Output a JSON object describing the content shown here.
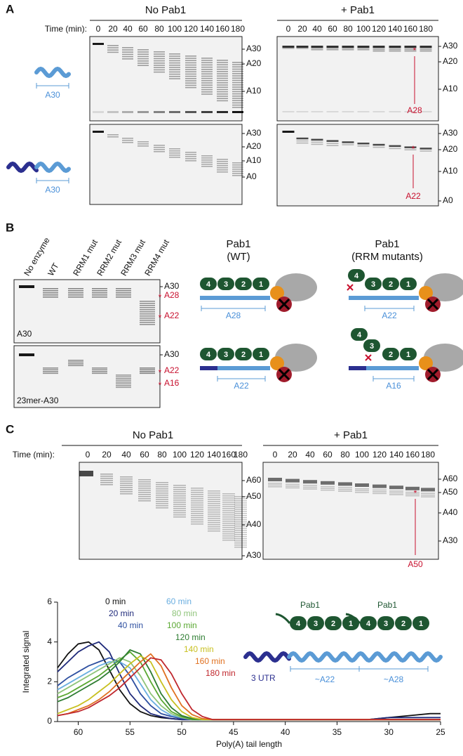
{
  "panel_a": {
    "letter": "A",
    "time_label": "Time (min):",
    "times": [
      "0",
      "20",
      "40",
      "60",
      "80",
      "100",
      "120",
      "140",
      "160",
      "180"
    ],
    "no_pab1": {
      "title": "No Pab1",
      "top_markers": [
        "A30",
        "A20",
        "A10"
      ],
      "bottom_markers": [
        "A30",
        "A20",
        "A10",
        "A0"
      ]
    },
    "plus_pab1": {
      "title": "+ Pab1",
      "top_markers": [
        "A30",
        "A20",
        "A10"
      ],
      "bottom_markers": [
        "A30",
        "A20",
        "A10",
        "A0"
      ],
      "star": "*",
      "top_annotation": "A28",
      "bottom_annotation": "A22"
    },
    "substrate_labels": [
      "A30",
      "A30"
    ]
  },
  "panel_b": {
    "letter": "B",
    "lanes": [
      "No enzyme",
      "WT",
      "RRM1 mut",
      "RRM2 mut",
      "RRM3 mut",
      "RRM4 mut"
    ],
    "top_gel": {
      "label": "A30",
      "markers": [
        "A30",
        "A28",
        "A22"
      ]
    },
    "bottom_gel": {
      "label": "23mer-A30",
      "markers": [
        "A30",
        "A22",
        "A16"
      ]
    },
    "star": "*",
    "wt_title": [
      "Pab1",
      "(WT)"
    ],
    "mut_title": [
      "Pab1",
      "(RRM mutants)"
    ],
    "domains": [
      "4",
      "3",
      "2",
      "1"
    ],
    "footprints": [
      "A28",
      "A22",
      "A22",
      "A16"
    ]
  },
  "panel_c": {
    "letter": "C",
    "time_label": "Time (min):",
    "times": [
      "0",
      "20",
      "40",
      "60",
      "80",
      "100",
      "120",
      "140",
      "160",
      "180"
    ],
    "no_pab1": {
      "title": "No Pab1",
      "markers": [
        "A60",
        "A50",
        "A40",
        "A30"
      ]
    },
    "plus_pab1": {
      "title": "+ Pab1",
      "markers": [
        "A60",
        "A50",
        "A40",
        "A30"
      ],
      "star": "*",
      "annotation": "A50"
    }
  },
  "chart_data": {
    "type": "line",
    "x_label": "Poly(A) tail length",
    "y_label": "Integrated signal",
    "x": [
      62,
      61,
      60,
      59,
      58,
      57,
      56,
      55,
      54,
      53,
      52,
      51,
      50,
      49,
      48,
      47,
      46,
      45,
      44,
      42,
      40,
      38,
      36,
      34,
      32,
      30,
      28,
      26,
      25
    ],
    "xlim": [
      62,
      25
    ],
    "xticks": [
      60,
      55,
      50,
      45,
      40,
      35,
      30,
      25
    ],
    "ylim": [
      0,
      6
    ],
    "yticks": [
      0,
      2,
      4,
      6
    ],
    "grid": false,
    "series": [
      {
        "name": "0 min",
        "color": "#111111",
        "values": [
          2.7,
          3.4,
          3.9,
          4.0,
          3.6,
          2.6,
          1.6,
          0.9,
          0.5,
          0.3,
          0.2,
          0.15,
          0.1,
          0.1,
          0.1,
          0.1,
          0.1,
          0.1,
          0.1,
          0.1,
          0.1,
          0.1,
          0.1,
          0.1,
          0.1,
          0.2,
          0.3,
          0.4,
          0.4
        ]
      },
      {
        "name": "20 min",
        "color": "#1f2a7a",
        "values": [
          2.5,
          3.0,
          3.5,
          3.8,
          4.0,
          3.5,
          2.4,
          1.4,
          0.8,
          0.4,
          0.25,
          0.15,
          0.1,
          0.1,
          0.1,
          0.1,
          0.1,
          0.1,
          0.1,
          0.1,
          0.1,
          0.1,
          0.1,
          0.1,
          0.1,
          0.2,
          0.2,
          0.2,
          0.2
        ]
      },
      {
        "name": "40 min",
        "color": "#2d4fa0",
        "values": [
          1.8,
          2.2,
          2.5,
          2.8,
          3.0,
          3.2,
          3.0,
          2.3,
          1.4,
          0.8,
          0.4,
          0.25,
          0.15,
          0.1,
          0.1,
          0.1,
          0.1,
          0.1,
          0.1,
          0.1,
          0.1,
          0.1,
          0.1,
          0.1,
          0.1,
          0.1,
          0.1,
          0.1,
          0.1
        ]
      },
      {
        "name": "60 min",
        "color": "#6aaee0",
        "values": [
          1.6,
          1.9,
          2.2,
          2.5,
          2.8,
          3.0,
          3.0,
          2.7,
          1.9,
          1.1,
          0.6,
          0.3,
          0.2,
          0.1,
          0.1,
          0.1,
          0.1,
          0.1,
          0.1,
          0.1,
          0.1,
          0.1,
          0.1,
          0.1,
          0.1,
          0.1,
          0.1,
          0.1,
          0.1
        ]
      },
      {
        "name": "80 min",
        "color": "#8fc47a",
        "values": [
          1.4,
          1.7,
          2.0,
          2.3,
          2.6,
          2.9,
          3.2,
          3.0,
          2.3,
          1.4,
          0.8,
          0.4,
          0.2,
          0.1,
          0.1,
          0.1,
          0.1,
          0.1,
          0.1,
          0.1,
          0.1,
          0.1,
          0.1,
          0.1,
          0.1,
          0.1,
          0.1,
          0.1,
          0.1
        ]
      },
      {
        "name": "100 min",
        "color": "#5aa832",
        "values": [
          1.2,
          1.4,
          1.7,
          2.0,
          2.3,
          2.7,
          3.1,
          3.5,
          3.0,
          2.0,
          1.1,
          0.5,
          0.25,
          0.1,
          0.1,
          0.1,
          0.1,
          0.1,
          0.1,
          0.1,
          0.1,
          0.1,
          0.1,
          0.1,
          0.1,
          0.1,
          0.1,
          0.1,
          0.1
        ]
      },
      {
        "name": "120 min",
        "color": "#2e7d32",
        "values": [
          1.0,
          1.2,
          1.5,
          1.8,
          2.1,
          2.5,
          3.0,
          3.6,
          3.4,
          2.5,
          1.4,
          0.7,
          0.3,
          0.15,
          0.1,
          0.1,
          0.1,
          0.1,
          0.1,
          0.1,
          0.1,
          0.1,
          0.1,
          0.1,
          0.1,
          0.1,
          0.1,
          0.1,
          0.1
        ]
      },
      {
        "name": "140 min",
        "color": "#c8c020",
        "values": [
          0.4,
          0.6,
          0.8,
          1.1,
          1.5,
          1.9,
          2.4,
          2.9,
          3.3,
          3.0,
          2.0,
          1.1,
          0.5,
          0.2,
          0.1,
          0.1,
          0.1,
          0.1,
          0.1,
          0.1,
          0.1,
          0.1,
          0.1,
          0.1,
          0.1,
          0.1,
          0.1,
          0.1,
          0.1
        ]
      },
      {
        "name": "160 min",
        "color": "#e07020",
        "values": [
          0.3,
          0.4,
          0.6,
          0.8,
          1.1,
          1.5,
          2.0,
          2.5,
          3.0,
          3.4,
          2.8,
          1.7,
          0.8,
          0.35,
          0.15,
          0.1,
          0.1,
          0.1,
          0.1,
          0.1,
          0.1,
          0.1,
          0.1,
          0.1,
          0.1,
          0.1,
          0.1,
          0.1,
          0.1
        ]
      },
      {
        "name": "180 min",
        "color": "#c0282e",
        "values": [
          0.3,
          0.4,
          0.5,
          0.7,
          1.0,
          1.3,
          1.7,
          2.2,
          2.7,
          3.2,
          3.1,
          2.4,
          1.4,
          0.6,
          0.25,
          0.1,
          0.1,
          0.1,
          0.1,
          0.1,
          0.1,
          0.1,
          0.1,
          0.1,
          0.1,
          0.1,
          0.1,
          0.1,
          0.1
        ]
      }
    ],
    "diagram": {
      "proteins": [
        "Pab1",
        "Pab1"
      ],
      "domains": [
        "4",
        "3",
        "2",
        "1"
      ],
      "utr": "3 UTR",
      "footprints": [
        "~A22",
        "~A28"
      ]
    }
  }
}
